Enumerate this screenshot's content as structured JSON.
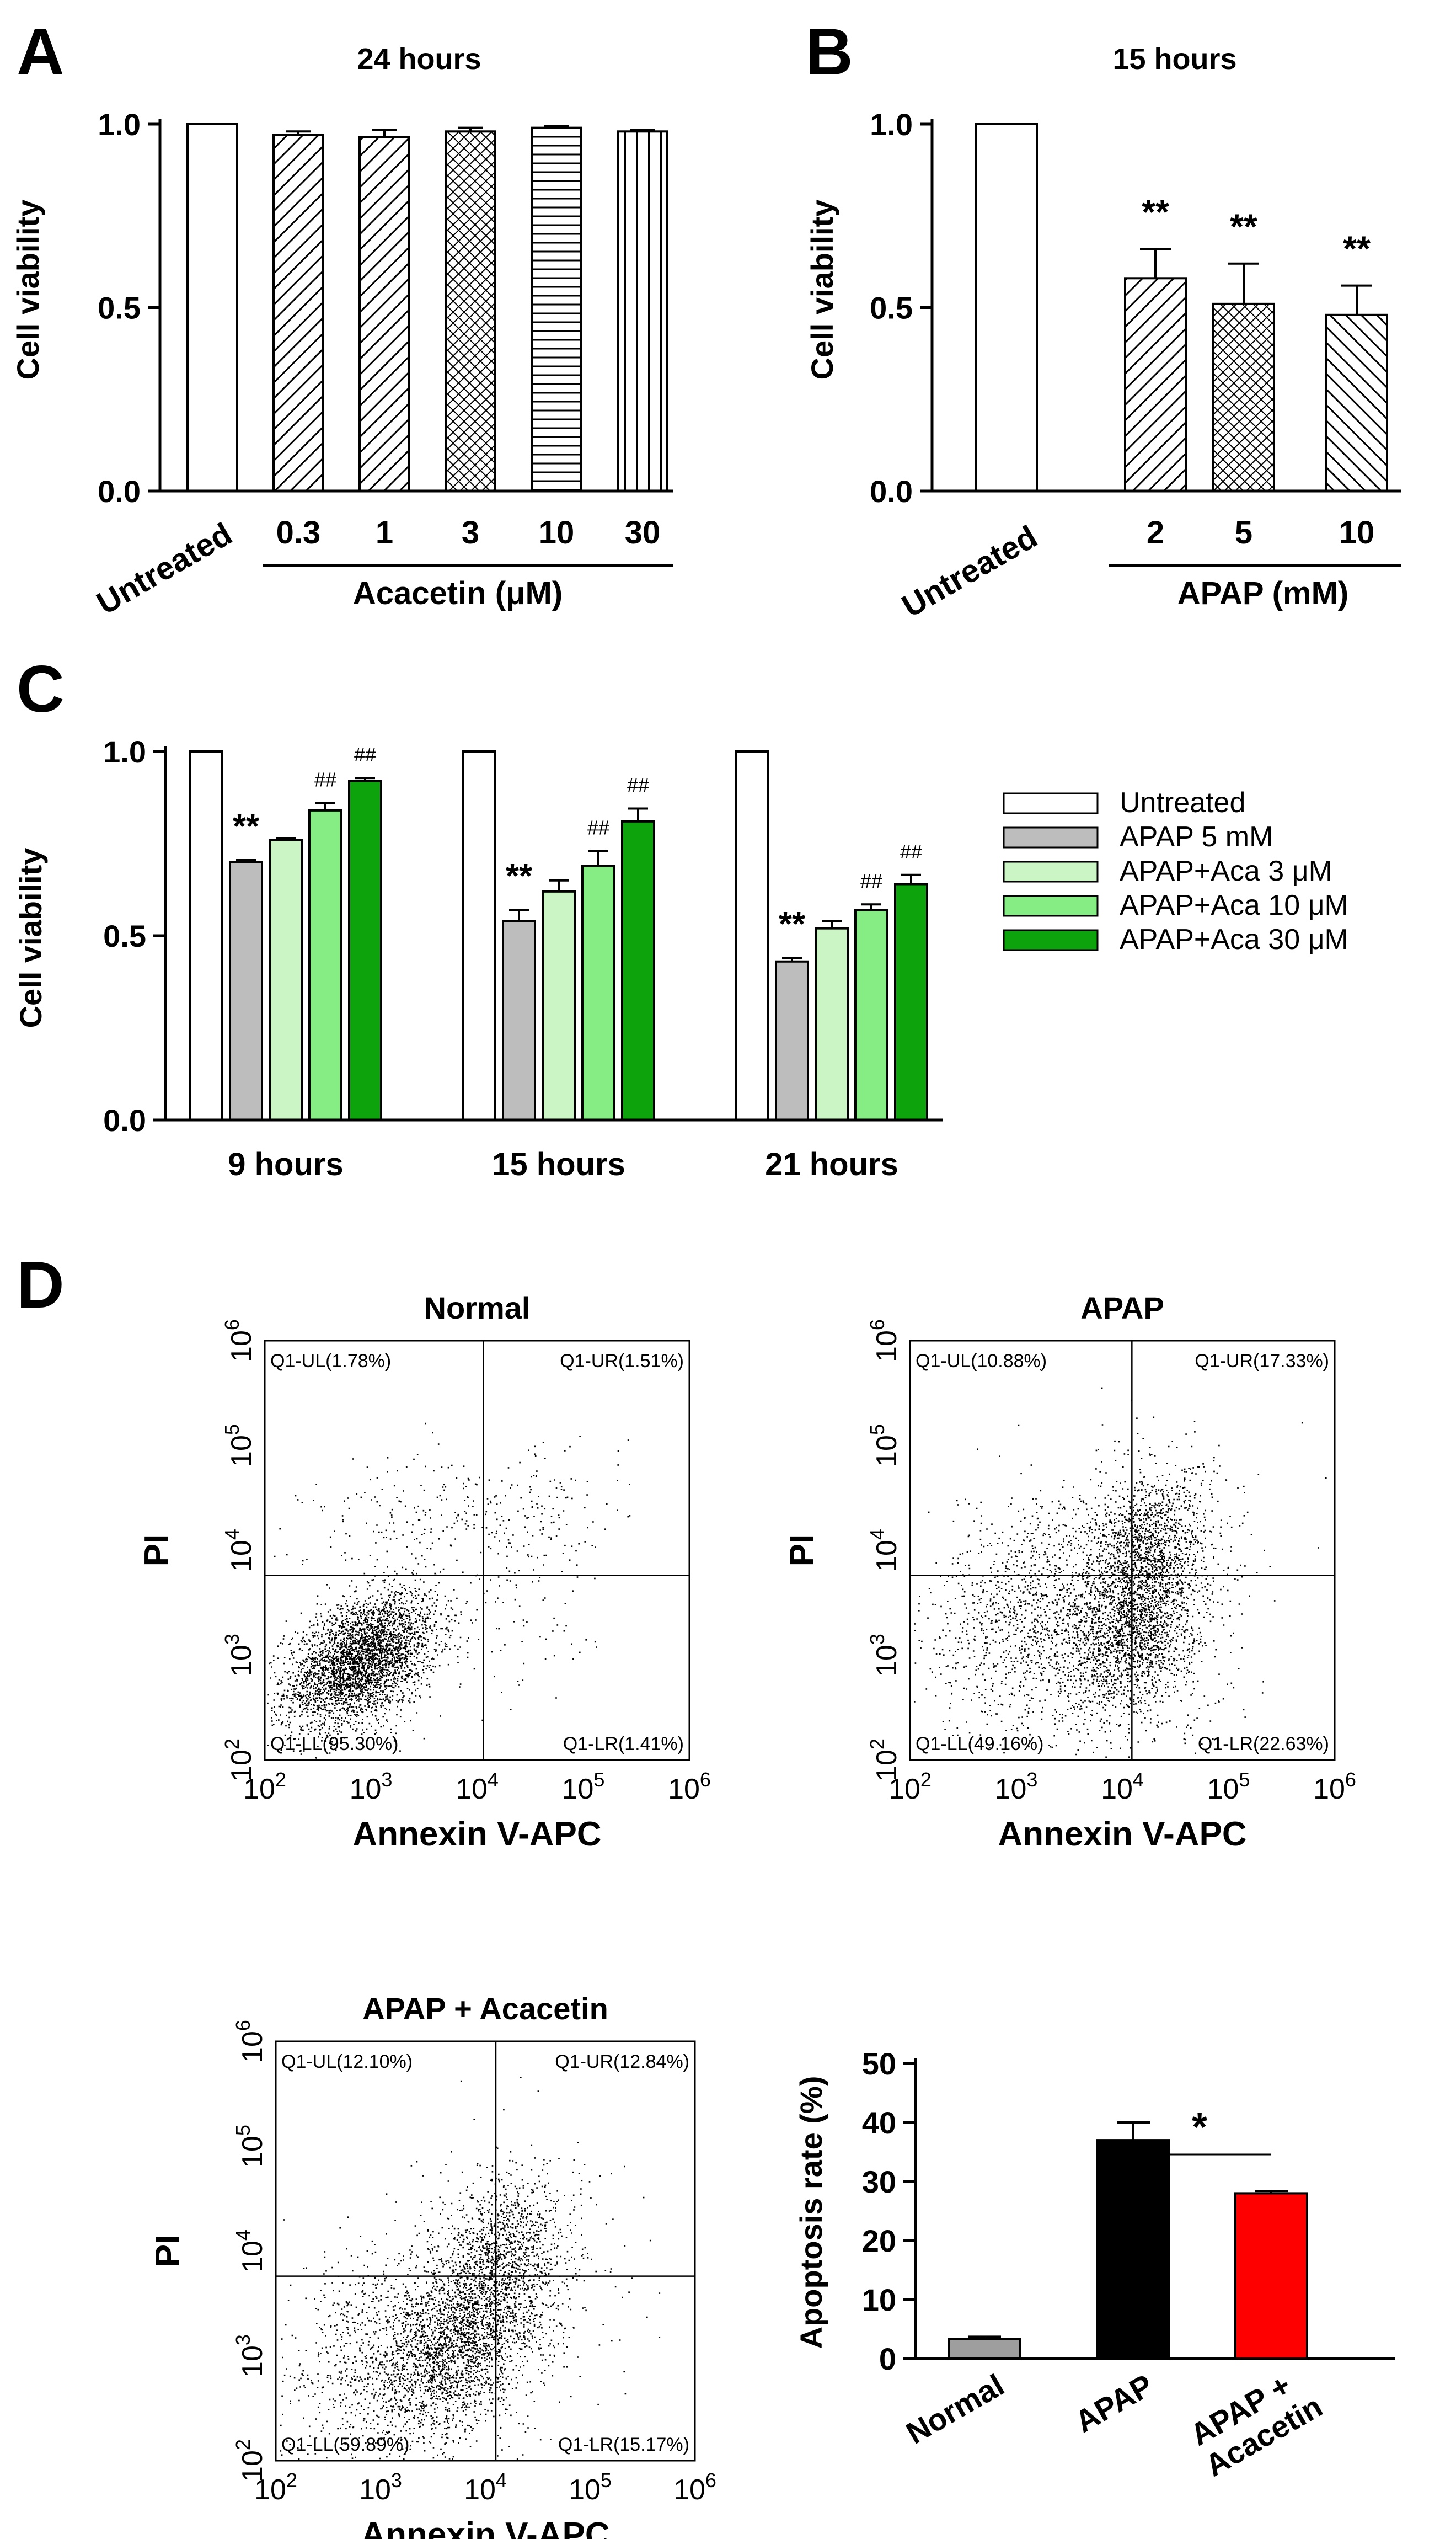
{
  "panels": {
    "A": {
      "letter": "A",
      "chart_data": {
        "type": "bar",
        "title": "24 hours",
        "ylabel": "Cell viability",
        "xlabel": "Acacetin (μM)",
        "ylim": [
          0,
          1.0
        ],
        "yticks": [
          "0.0",
          "0.5",
          "1.0"
        ],
        "categories": [
          "Untreated",
          "0.3",
          "1",
          "3",
          "10",
          "30"
        ],
        "values": [
          1.0,
          0.97,
          0.965,
          0.98,
          0.99,
          0.98
        ],
        "errors": [
          0,
          0.01,
          0.02,
          0.01,
          0.005,
          0.005
        ],
        "patterns": [
          "none",
          "diag",
          "diag",
          "cross",
          "hlines",
          "vlines"
        ]
      }
    },
    "B": {
      "letter": "B",
      "chart_data": {
        "type": "bar",
        "title": "15 hours",
        "ylabel": "Cell viability",
        "xlabel": "APAP (mM)",
        "ylim": [
          0,
          1.0
        ],
        "yticks": [
          "0.0",
          "0.5",
          "1.0"
        ],
        "categories": [
          "Untreated",
          "2",
          "5",
          "10"
        ],
        "values": [
          1.0,
          0.58,
          0.51,
          0.48
        ],
        "errors": [
          0,
          0.08,
          0.11,
          0.08
        ],
        "patterns": [
          "none",
          "diag",
          "cross",
          "diagrev"
        ],
        "annotations": [
          "",
          "**",
          "**",
          "**"
        ]
      }
    },
    "C": {
      "letter": "C",
      "chart_data": {
        "type": "bar",
        "ylabel": "Cell viability",
        "ylim": [
          0,
          1.0
        ],
        "yticks": [
          "0.0",
          "0.5",
          "1.0"
        ],
        "categories": [
          "9 hours",
          "15 hours",
          "21 hours"
        ],
        "series": [
          {
            "name": "Untreated",
            "color": "#ffffff",
            "values": [
              1.0,
              1.0,
              1.0
            ],
            "errors": [
              0,
              0,
              0
            ],
            "marks": [
              "",
              "",
              ""
            ]
          },
          {
            "name": "APAP 5 mM",
            "color": "#bdbdbd",
            "values": [
              0.7,
              0.54,
              0.43
            ],
            "errors": [
              0.005,
              0.03,
              0.01
            ],
            "marks": [
              "**",
              "**",
              "**"
            ]
          },
          {
            "name": "APAP+Aca 3 μM",
            "color": "#ccf5c6",
            "values": [
              0.76,
              0.62,
              0.52
            ],
            "errors": [
              0.005,
              0.03,
              0.02
            ],
            "marks": [
              "",
              "",
              ""
            ]
          },
          {
            "name": "APAP+Aca 10 μM",
            "color": "#86ed84",
            "values": [
              0.84,
              0.69,
              0.57
            ],
            "errors": [
              0.02,
              0.04,
              0.015
            ],
            "marks": [
              "##",
              "##",
              "##"
            ]
          },
          {
            "name": "APAP+Aca 30 μM",
            "color": "#0ca30c",
            "values": [
              0.92,
              0.81,
              0.64
            ],
            "errors": [
              0.008,
              0.035,
              0.025
            ],
            "marks": [
              "##",
              "##",
              "##"
            ]
          }
        ],
        "legend": "right"
      }
    },
    "D": {
      "letter": "D",
      "flow_axis": {
        "xlabel": "Annexin V-APC",
        "ylabel": "PI",
        "tick_base": "10",
        "tick_exps": [
          "2",
          "3",
          "4",
          "5",
          "6"
        ]
      },
      "plots": [
        {
          "title": "Normal",
          "UL": "Q1-UL(1.78%)",
          "UR": "Q1-UR(1.51%)",
          "LL": "Q1-LL(95.30%)",
          "LR": "Q1-LR(1.41%)"
        },
        {
          "title": "APAP",
          "UL": "Q1-UL(10.88%)",
          "UR": "Q1-UR(17.33%)",
          "LL": "Q1-LL(49.16%)",
          "LR": "Q1-LR(22.63%)"
        },
        {
          "title": "APAP + Acacetin",
          "UL": "Q1-UL(12.10%)",
          "UR": "Q1-UR(12.84%)",
          "LL": "Q1-LL(59.89%)",
          "LR": "Q1-LR(15.17%)"
        }
      ],
      "chart_data": {
        "type": "bar",
        "ylabel": "Apoptosis rate (%)",
        "ylim": [
          0,
          50
        ],
        "yticks": [
          "0",
          "10",
          "20",
          "30",
          "40",
          "50"
        ],
        "categories": [
          "Normal",
          "APAP",
          "APAP + Acacetin"
        ],
        "category_lines": [
          [
            "Normal"
          ],
          [
            "APAP"
          ],
          [
            "APAP +",
            "Acacetin"
          ]
        ],
        "values": [
          3.3,
          37.0,
          28.0
        ],
        "errors": [
          0.4,
          3.0,
          0.4
        ],
        "colors": [
          "#9e9e9e",
          "#000000",
          "#ff0000"
        ],
        "significance": "*"
      }
    }
  }
}
